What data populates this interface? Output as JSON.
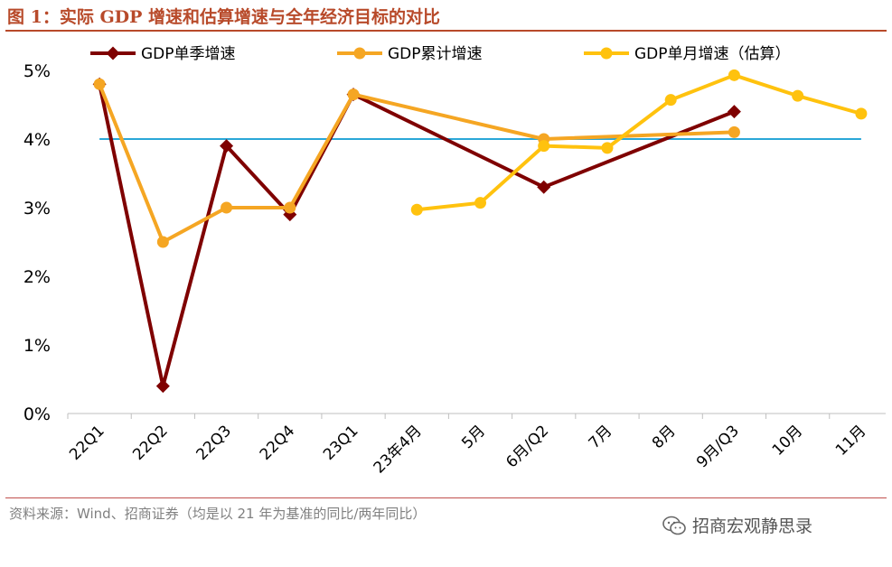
{
  "figure": {
    "title": "图 1：实际 GDP 增速和估算增速与全年经济目标的对比",
    "source": "资料来源：Wind、招商证券（均是以 21 年为基准的同比/两年同比）",
    "watermark": "招商宏观静思录",
    "watermark_icon": "wechat-icon"
  },
  "chart_data": {
    "type": "line",
    "categories": [
      "22Q1",
      "22Q2",
      "22Q3",
      "22Q4",
      "23Q1",
      "23年4月",
      "5月",
      "6月/Q2",
      "7月",
      "8月",
      "9月/Q3",
      "10月",
      "11月"
    ],
    "ylim": [
      0,
      5
    ],
    "yticks": [
      "0%",
      "1%",
      "2%",
      "3%",
      "4%",
      "5%"
    ],
    "grid": false,
    "legend_position": "top",
    "series": [
      {
        "name": "GDP单季增速",
        "color": "#7f0000",
        "marker": "diamond",
        "values": [
          4.8,
          0.4,
          3.9,
          2.9,
          4.65,
          null,
          null,
          3.3,
          null,
          null,
          4.4,
          null,
          null
        ]
      },
      {
        "name": "GDP累计增速",
        "color": "#f5a623",
        "marker": "circle",
        "values": [
          4.8,
          2.5,
          3.0,
          3.0,
          4.65,
          null,
          null,
          4.0,
          null,
          null,
          4.1,
          null,
          null
        ]
      },
      {
        "name": "GDP单月增速（估算）",
        "color": "#ffc20e",
        "marker": "circle",
        "values": [
          null,
          null,
          null,
          null,
          null,
          2.97,
          3.07,
          3.9,
          3.87,
          4.57,
          4.93,
          4.63,
          4.37
        ]
      }
    ],
    "reference_line": {
      "value": 4.0,
      "color": "#2aa7d8"
    }
  }
}
